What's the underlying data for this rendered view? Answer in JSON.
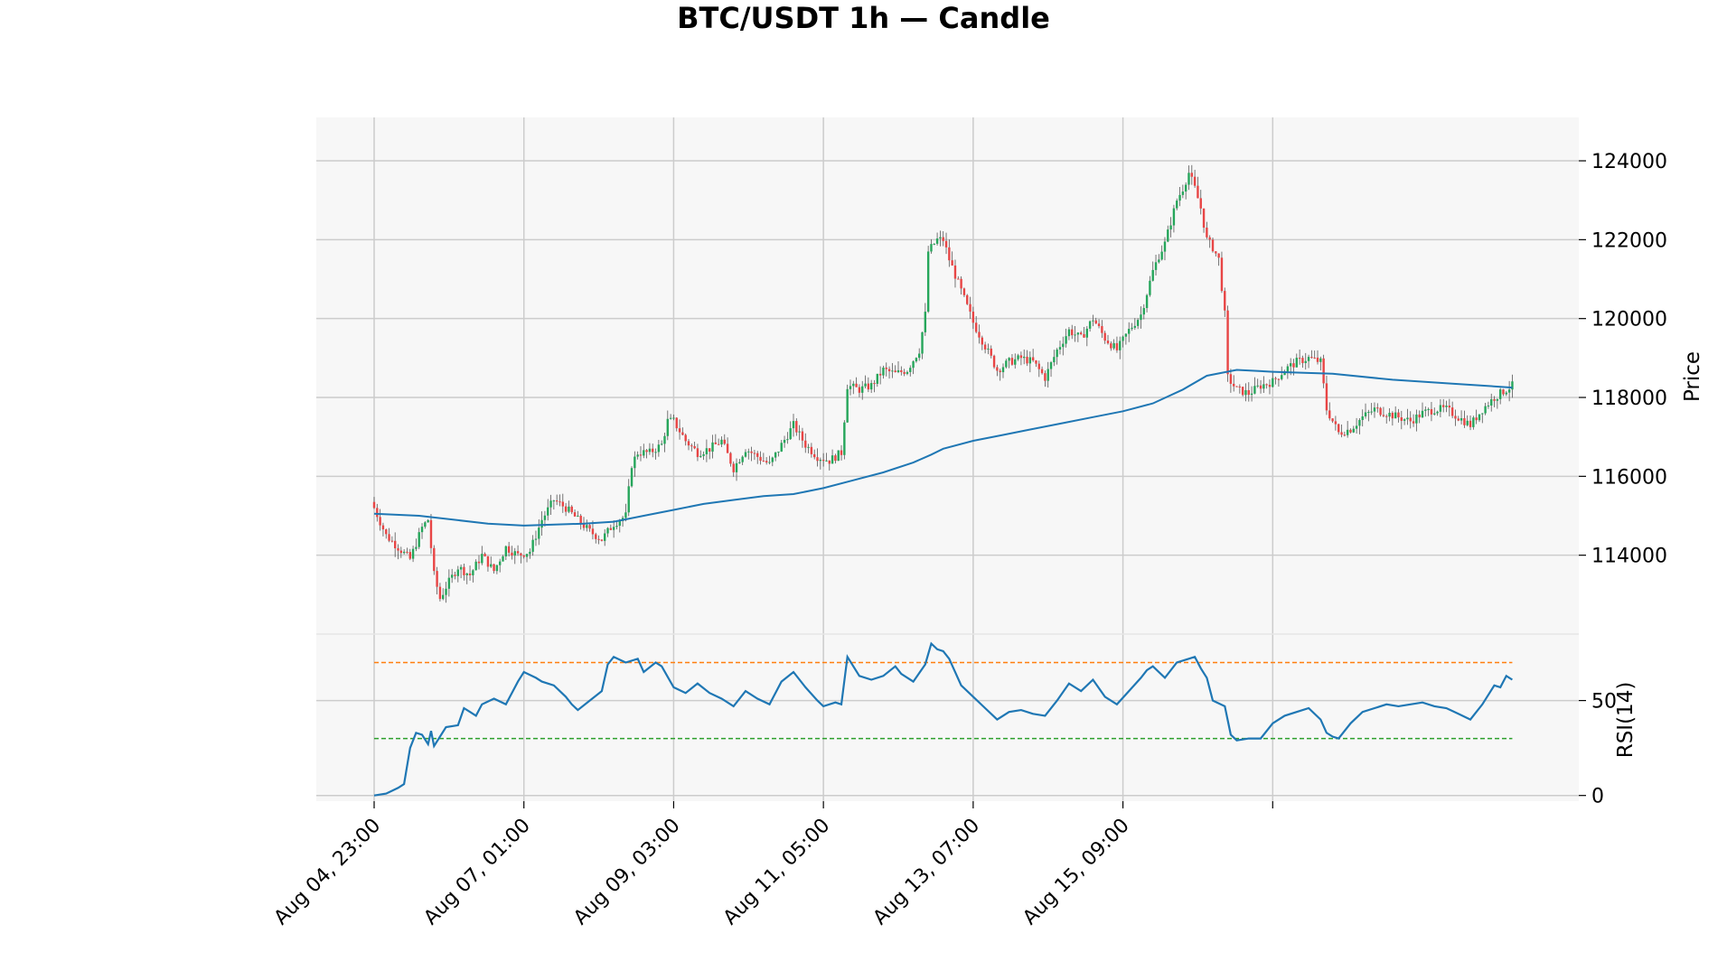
{
  "chart_data": {
    "type": "candlestick",
    "title": "BTC/USDT 1h — Candle",
    "x_tick_labels": [
      "Aug 04, 23:00",
      "Aug 07, 01:00",
      "Aug 09, 03:00",
      "Aug 11, 05:00",
      "Aug 13, 07:00",
      "Aug 15, 09:00"
    ],
    "price_panel": {
      "ylabel": "Price",
      "ylim": [
        112000,
        125100
      ],
      "yticks": [
        114000,
        116000,
        118000,
        120000,
        122000,
        124000
      ],
      "grid": true,
      "candle_series": {
        "up_color": "#26a65b",
        "down_color": "#e84545",
        "close_path": [
          [
            0,
            115200
          ],
          [
            4,
            114500
          ],
          [
            8,
            114200
          ],
          [
            12,
            113900
          ],
          [
            16,
            114700
          ],
          [
            18,
            114900
          ],
          [
            20,
            113500
          ],
          [
            22,
            112900
          ],
          [
            24,
            113200
          ],
          [
            28,
            113700
          ],
          [
            32,
            113500
          ],
          [
            36,
            114000
          ],
          [
            40,
            113600
          ],
          [
            44,
            114200
          ],
          [
            48,
            114000
          ],
          [
            52,
            114100
          ],
          [
            56,
            114900
          ],
          [
            60,
            115400
          ],
          [
            64,
            115200
          ],
          [
            68,
            114900
          ],
          [
            72,
            114600
          ],
          [
            76,
            114400
          ],
          [
            80,
            114800
          ],
          [
            84,
            115000
          ],
          [
            86,
            116300
          ],
          [
            88,
            116600
          ],
          [
            92,
            116600
          ],
          [
            96,
            116800
          ],
          [
            98,
            117400
          ],
          [
            100,
            117400
          ],
          [
            104,
            116900
          ],
          [
            108,
            116600
          ],
          [
            112,
            116700
          ],
          [
            116,
            116900
          ],
          [
            120,
            116200
          ],
          [
            124,
            116700
          ],
          [
            128,
            116500
          ],
          [
            132,
            116300
          ],
          [
            136,
            116800
          ],
          [
            140,
            117300
          ],
          [
            144,
            116800
          ],
          [
            148,
            116500
          ],
          [
            152,
            116400
          ],
          [
            156,
            116600
          ],
          [
            158,
            118300
          ],
          [
            162,
            118200
          ],
          [
            166,
            118300
          ],
          [
            170,
            118700
          ],
          [
            174,
            118600
          ],
          [
            178,
            118700
          ],
          [
            182,
            119200
          ],
          [
            184,
            120100
          ],
          [
            185,
            121700
          ],
          [
            188,
            122000
          ],
          [
            190,
            122000
          ],
          [
            192,
            121500
          ],
          [
            196,
            120700
          ],
          [
            200,
            119900
          ],
          [
            204,
            119300
          ],
          [
            208,
            118700
          ],
          [
            212,
            118900
          ],
          [
            216,
            119000
          ],
          [
            220,
            118900
          ],
          [
            224,
            118500
          ],
          [
            228,
            119200
          ],
          [
            232,
            119700
          ],
          [
            236,
            119500
          ],
          [
            240,
            120000
          ],
          [
            244,
            119500
          ],
          [
            248,
            119200
          ],
          [
            252,
            119700
          ],
          [
            256,
            120100
          ],
          [
            260,
            121200
          ],
          [
            262,
            121600
          ],
          [
            264,
            121900
          ],
          [
            268,
            123000
          ],
          [
            270,
            123300
          ],
          [
            272,
            123700
          ],
          [
            274,
            123300
          ],
          [
            276,
            122800
          ],
          [
            278,
            122000
          ],
          [
            280,
            121800
          ],
          [
            282,
            121500
          ],
          [
            284,
            120100
          ],
          [
            285,
            118500
          ],
          [
            288,
            118200
          ],
          [
            292,
            118100
          ],
          [
            296,
            118300
          ],
          [
            300,
            118400
          ],
          [
            304,
            118700
          ],
          [
            308,
            118900
          ],
          [
            312,
            119000
          ],
          [
            316,
            118900
          ],
          [
            318,
            117700
          ],
          [
            320,
            117400
          ],
          [
            322,
            117100
          ],
          [
            326,
            117200
          ],
          [
            330,
            117500
          ],
          [
            334,
            117700
          ],
          [
            338,
            117600
          ],
          [
            342,
            117500
          ],
          [
            346,
            117400
          ],
          [
            350,
            117600
          ],
          [
            354,
            117700
          ],
          [
            358,
            117700
          ],
          [
            362,
            117500
          ],
          [
            366,
            117300
          ],
          [
            370,
            117700
          ],
          [
            374,
            118000
          ],
          [
            378,
            118200
          ],
          [
            380,
            118300
          ]
        ]
      },
      "line_series": {
        "color": "#1f77b4",
        "points": [
          [
            0,
            115050
          ],
          [
            15,
            115000
          ],
          [
            38,
            114800
          ],
          [
            50,
            114750
          ],
          [
            70,
            114800
          ],
          [
            80,
            114850
          ],
          [
            90,
            115000
          ],
          [
            100,
            115150
          ],
          [
            110,
            115300
          ],
          [
            120,
            115400
          ],
          [
            130,
            115500
          ],
          [
            140,
            115550
          ],
          [
            150,
            115700
          ],
          [
            160,
            115900
          ],
          [
            170,
            116100
          ],
          [
            180,
            116350
          ],
          [
            186,
            116550
          ],
          [
            190,
            116700
          ],
          [
            200,
            116900
          ],
          [
            210,
            117050
          ],
          [
            220,
            117200
          ],
          [
            230,
            117350
          ],
          [
            240,
            117500
          ],
          [
            250,
            117650
          ],
          [
            260,
            117850
          ],
          [
            270,
            118200
          ],
          [
            278,
            118550
          ],
          [
            288,
            118700
          ],
          [
            300,
            118650
          ],
          [
            320,
            118600
          ],
          [
            340,
            118450
          ],
          [
            360,
            118350
          ],
          [
            380,
            118250
          ]
        ]
      }
    },
    "rsi_panel": {
      "ylabel": "RSI(14)",
      "ylim": [
        -3,
        85
      ],
      "yticks": [
        0,
        50
      ],
      "overbought": 70,
      "oversold": 30,
      "overbought_color": "#ff7f0e",
      "oversold_color": "#2ca02c",
      "line_color": "#1f77b4",
      "points": [
        [
          0,
          0
        ],
        [
          4,
          1
        ],
        [
          8,
          4
        ],
        [
          10,
          6
        ],
        [
          12,
          25
        ],
        [
          14,
          33
        ],
        [
          16,
          32
        ],
        [
          18,
          27
        ],
        [
          19,
          34
        ],
        [
          20,
          26
        ],
        [
          24,
          36
        ],
        [
          28,
          37
        ],
        [
          30,
          46
        ],
        [
          32,
          44
        ],
        [
          34,
          42
        ],
        [
          36,
          48
        ],
        [
          40,
          51
        ],
        [
          44,
          48
        ],
        [
          48,
          60
        ],
        [
          50,
          65
        ],
        [
          54,
          62
        ],
        [
          56,
          60
        ],
        [
          60,
          58
        ],
        [
          64,
          52
        ],
        [
          66,
          48
        ],
        [
          68,
          45
        ],
        [
          72,
          50
        ],
        [
          76,
          55
        ],
        [
          78,
          69
        ],
        [
          80,
          73
        ],
        [
          84,
          70
        ],
        [
          88,
          72
        ],
        [
          90,
          65
        ],
        [
          94,
          70
        ],
        [
          96,
          68
        ],
        [
          100,
          57
        ],
        [
          104,
          54
        ],
        [
          108,
          59
        ],
        [
          112,
          54
        ],
        [
          116,
          51
        ],
        [
          120,
          47
        ],
        [
          124,
          55
        ],
        [
          128,
          51
        ],
        [
          132,
          48
        ],
        [
          136,
          60
        ],
        [
          140,
          65
        ],
        [
          144,
          57
        ],
        [
          148,
          50
        ],
        [
          150,
          47
        ],
        [
          154,
          49
        ],
        [
          156,
          48
        ],
        [
          158,
          73
        ],
        [
          162,
          63
        ],
        [
          166,
          61
        ],
        [
          170,
          63
        ],
        [
          174,
          68
        ],
        [
          176,
          64
        ],
        [
          180,
          60
        ],
        [
          184,
          69
        ],
        [
          186,
          80
        ],
        [
          188,
          77
        ],
        [
          190,
          76
        ],
        [
          192,
          72
        ],
        [
          196,
          58
        ],
        [
          200,
          52
        ],
        [
          204,
          46
        ],
        [
          208,
          40
        ],
        [
          212,
          44
        ],
        [
          216,
          45
        ],
        [
          220,
          43
        ],
        [
          224,
          42
        ],
        [
          228,
          50
        ],
        [
          232,
          59
        ],
        [
          236,
          55
        ],
        [
          240,
          61
        ],
        [
          244,
          52
        ],
        [
          248,
          48
        ],
        [
          252,
          55
        ],
        [
          256,
          62
        ],
        [
          258,
          66
        ],
        [
          260,
          68
        ],
        [
          264,
          62
        ],
        [
          268,
          70
        ],
        [
          272,
          72
        ],
        [
          274,
          73
        ],
        [
          276,
          67
        ],
        [
          278,
          62
        ],
        [
          280,
          50
        ],
        [
          284,
          47
        ],
        [
          286,
          32
        ],
        [
          288,
          29
        ],
        [
          292,
          30
        ],
        [
          296,
          30
        ],
        [
          300,
          38
        ],
        [
          304,
          42
        ],
        [
          308,
          44
        ],
        [
          312,
          46
        ],
        [
          316,
          40
        ],
        [
          318,
          33
        ],
        [
          320,
          31
        ],
        [
          322,
          30
        ],
        [
          326,
          38
        ],
        [
          330,
          44
        ],
        [
          334,
          46
        ],
        [
          338,
          48
        ],
        [
          342,
          47
        ],
        [
          346,
          48
        ],
        [
          350,
          49
        ],
        [
          354,
          47
        ],
        [
          358,
          46
        ],
        [
          362,
          43
        ],
        [
          366,
          40
        ],
        [
          370,
          48
        ],
        [
          374,
          58
        ],
        [
          376,
          57
        ],
        [
          378,
          63
        ],
        [
          380,
          61
        ]
      ]
    }
  }
}
